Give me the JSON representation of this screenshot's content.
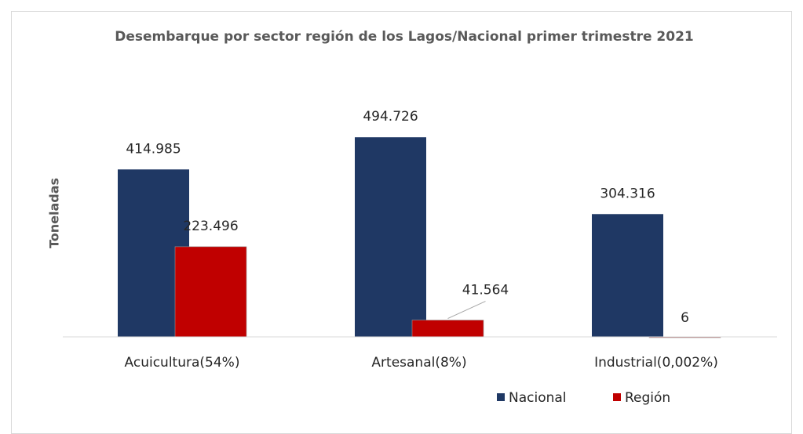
{
  "chart_data": {
    "type": "bar",
    "title": "Desembarque por sector región de los Lagos/Nacional primer trimestre 2021",
    "y_label": "Toneladas",
    "categories": [
      "Acuicultura(54%)",
      "Artesanal(8%)",
      "Industrial(0,002%)"
    ],
    "series": [
      {
        "name": "Nacional",
        "color": "#1f3864",
        "values": [
          414985,
          494726,
          304316
        ],
        "value_labels": [
          "414.985",
          "494.726",
          "304.316"
        ]
      },
      {
        "name": "Región",
        "color": "#c00000",
        "values": [
          223496,
          41564,
          6
        ],
        "value_labels": [
          "223.496",
          "41.564",
          "6"
        ]
      }
    ],
    "ylim": [
      0,
      600000
    ],
    "legend": "bottom"
  }
}
